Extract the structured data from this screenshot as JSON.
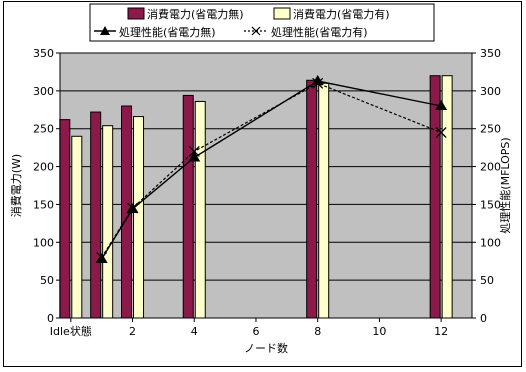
{
  "chart_data": {
    "type": "bar",
    "categories": [
      "Idle状態",
      "1",
      "2",
      "4",
      "8",
      "12"
    ],
    "x_tick_labels": [
      "Idle状態",
      "2",
      "4",
      "6",
      "8",
      "10",
      "12"
    ],
    "xlabel": "ノード数",
    "ylabel_left": "消費電力(W)",
    "ylabel_right": "処理性能(MFLOPS)",
    "ylim_left": [
      0,
      350
    ],
    "ylim_right": [
      0,
      350
    ],
    "y_ticks": [
      0,
      50,
      100,
      150,
      200,
      250,
      300,
      350
    ],
    "grid": true,
    "legend_position": "top",
    "bar_series": [
      {
        "name": "消費電力(省電力無)",
        "color": "#8B1A4A",
        "x": [
          "Idle",
          1,
          2,
          4,
          8,
          12
        ],
        "values": [
          262,
          272,
          280,
          294,
          314,
          320
        ]
      },
      {
        "name": "消費電力(省電力有)",
        "color": "#FFFFCC",
        "x": [
          "Idle",
          1,
          2,
          4,
          8,
          12
        ],
        "values": [
          240,
          254,
          266,
          286,
          310,
          320
        ]
      }
    ],
    "line_series": [
      {
        "name": "処理性能(省電力無)",
        "style": "solid",
        "marker": "triangle",
        "x": [
          1,
          2,
          4,
          8,
          12
        ],
        "values": [
          78,
          144,
          212,
          313,
          280
        ]
      },
      {
        "name": "処理性能(省電力有)",
        "style": "dotted",
        "marker": "x",
        "x": [
          1,
          2,
          4,
          8,
          12
        ],
        "values": [
          80,
          145,
          220,
          310,
          245
        ]
      }
    ]
  }
}
